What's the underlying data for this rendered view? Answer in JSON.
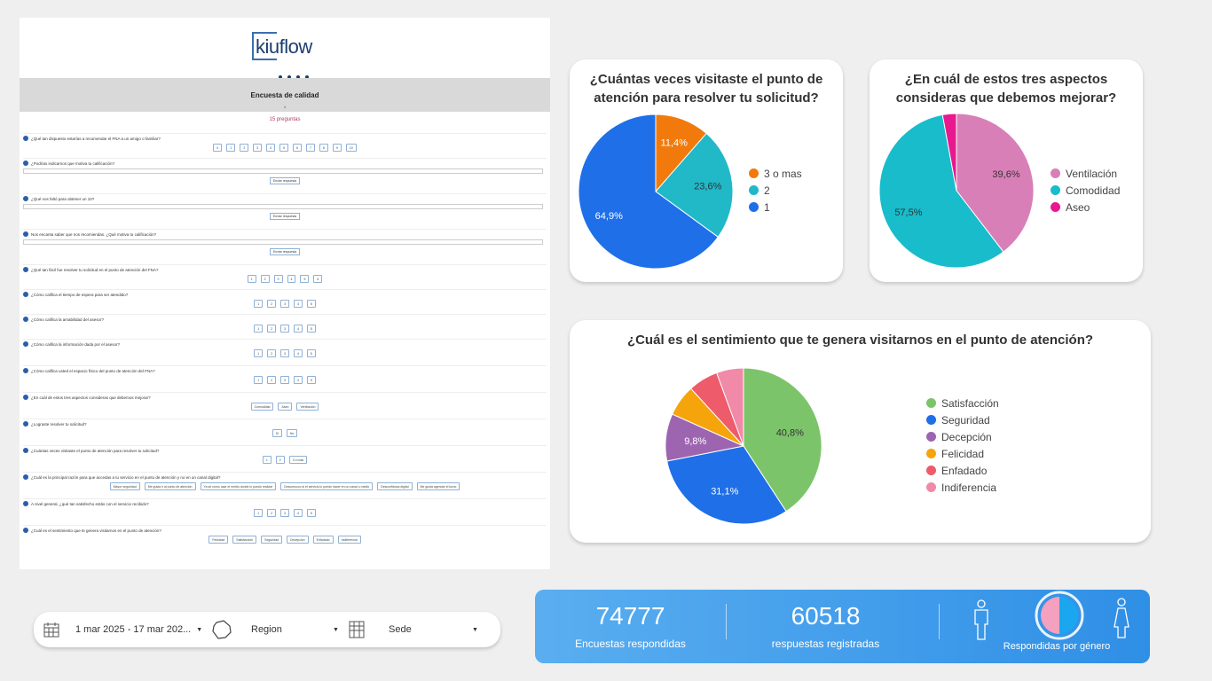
{
  "survey": {
    "logo": "kiuflow",
    "title": "Encuesta de calidad",
    "subtitle": "1",
    "question_count": "15 preguntas",
    "send_label": "Enviar respuesta",
    "questions": [
      {
        "text": "¿Qué tan dispuesto estarías a recomendar el FNA a un amigo o familiar?",
        "options": [
          "0",
          "1",
          "2",
          "3",
          "4",
          "5",
          "6",
          "7",
          "8",
          "9",
          "10"
        ]
      },
      {
        "text": "¿Podrías indicarnos que motiva tu calificación?",
        "textfield": true
      },
      {
        "text": "¿Qué nos faltó para obtener un 10?",
        "textfield": true
      },
      {
        "text": "Nos encanta saber que nos recomiendas. ¿Qué motiva tu calificación?",
        "textfield": true
      },
      {
        "text": "¿Qué tan fácil fue resolver tu solicitud en el punto de atención del FNA?",
        "options": [
          "1",
          "2",
          "3",
          "4",
          "5",
          "6"
        ]
      },
      {
        "text": "¿Cómo califica el tiempo de espera para ser atendido?",
        "options": [
          "1",
          "2",
          "3",
          "4",
          "5"
        ]
      },
      {
        "text": "¿Cómo califica la amabilidad del asesor?",
        "options": [
          "1",
          "2",
          "3",
          "4",
          "5"
        ]
      },
      {
        "text": "¿Cómo califica la información dada por el asesor?",
        "options": [
          "1",
          "2",
          "3",
          "4",
          "5"
        ]
      },
      {
        "text": "¿Cómo califica usted el espacio físico del punto de atención del FNA?",
        "options": [
          "1",
          "2",
          "3",
          "4",
          "5"
        ]
      },
      {
        "text": "¿En cuál de estos tres aspectos consideras que debemos mejorar?",
        "options": [
          "Comodidad",
          "Aseo",
          "Ventilación"
        ]
      },
      {
        "text": "¿Lograste resolver tu solicitud?",
        "options": [
          "Si",
          "No"
        ]
      },
      {
        "text": "¿Cuántas veces visitaste el punto de atención para resolver tu solicitud?",
        "options": [
          "1",
          "2",
          "3 o más"
        ]
      },
      {
        "text": "¿Cuál es la principal razón para que accedas a tu servicio en el punto de atención y no en un canal digital?",
        "options": [
          "Mayor seguridad",
          "Me gusta ir al punto de atención",
          "Ya sé cómo usar el medio donde lo puedo realizar",
          "Desconozco si el servicio lo puedo hacer en un canal o medio",
          "Desconfianza digital",
          "Me gusta agendar el turno"
        ]
      },
      {
        "text": "A nivel general, ¿qué tan satisfecho estás con el servicio recibido?",
        "options": [
          "1",
          "2",
          "3",
          "4",
          "5"
        ]
      },
      {
        "text": "¿Cuál es el sentimiento que te genera visitarnos en el punto de atención?",
        "options": [
          "Felicidad",
          "Satisfacción",
          "Seguridad",
          "Decepción",
          "Enfadado",
          "Indiferencia"
        ]
      }
    ]
  },
  "chart_data": [
    {
      "type": "pie",
      "title": "¿Cuántas veces visitaste el punto de atención para resolver tu solicitud?",
      "categories": [
        "3 o mas",
        "2",
        "1"
      ],
      "values": [
        11.4,
        23.6,
        64.9
      ],
      "labels": [
        "11,4%",
        "23,6%",
        "64,9%"
      ],
      "colors": [
        "#f27a0c",
        "#21b8c8",
        "#1f6fe8"
      ],
      "legend": "right"
    },
    {
      "type": "pie",
      "title": "¿En cuál de estos tres aspectos consideras que debemos mejorar?",
      "categories": [
        "Ventilación",
        "Comodidad",
        "Aseo"
      ],
      "values": [
        39.6,
        57.5,
        2.9
      ],
      "labels": [
        "39,6%",
        "57,5%",
        ""
      ],
      "colors": [
        "#d97fb8",
        "#18bccb",
        "#e8188f"
      ],
      "legend": "right"
    },
    {
      "type": "pie",
      "title": "¿Cuál es el sentimiento que te genera visitarnos en el punto de atención?",
      "categories": [
        "Satisfacción",
        "Seguridad",
        "Decepción",
        "Felicidad",
        "Enfadado",
        "Indiferencia"
      ],
      "values": [
        40.8,
        31.1,
        9.8,
        6.5,
        6.2,
        5.6
      ],
      "labels": [
        "40,8%",
        "31,1%",
        "9,8%",
        "",
        "",
        ""
      ],
      "colors": [
        "#7cc46a",
        "#1f6fe8",
        "#9d65b0",
        "#f5a40c",
        "#ee5b6a",
        "#f08aa8"
      ],
      "legend": "right"
    }
  ],
  "filters": {
    "date": "1 mar 2025 - 17 mar 202...",
    "region": "Region",
    "sede": "Sede"
  },
  "stats": {
    "encuestas_value": "74777",
    "encuestas_label": "Encuestas respondidas",
    "respuestas_value": "60518",
    "respuestas_label": "respuestas registradas",
    "genero_label": "Respondidas por género",
    "genero_shares": [
      0.5,
      0.5
    ],
    "genero_colors": [
      "#f4a0bf",
      "#1aa7f0"
    ]
  }
}
